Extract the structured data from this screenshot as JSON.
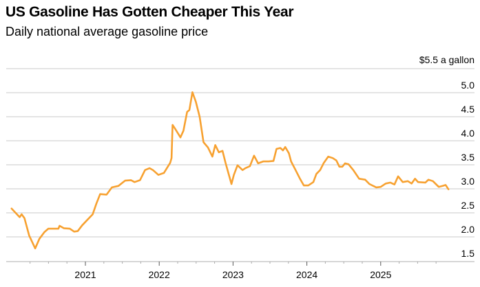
{
  "chart_data": {
    "type": "line",
    "title": "US Gasoline Has Gotten Cheaper This Year",
    "subtitle": "Daily national average gasoline price",
    "ylabel": "$5.5 a gallon",
    "ylim": [
      1.5,
      5.5
    ],
    "yticks": [
      "1.5",
      "2.0",
      "2.5",
      "3.0",
      "3.5",
      "4.0",
      "4.5",
      "5.0"
    ],
    "xticks": [
      "2021",
      "2022",
      "2023",
      "2024",
      "2025"
    ],
    "xlim": [
      "2020-01-01",
      "2026-01-01"
    ],
    "grid": true,
    "color": "#f7a130",
    "series": [
      {
        "points": [
          [
            "2020-01-01",
            2.59
          ],
          [
            "2020-02-10",
            2.41
          ],
          [
            "2020-02-20",
            2.47
          ],
          [
            "2020-03-05",
            2.39
          ],
          [
            "2020-03-28",
            2.03
          ],
          [
            "2020-04-27",
            1.76
          ],
          [
            "2020-05-18",
            1.96
          ],
          [
            "2020-06-12",
            2.1
          ],
          [
            "2020-07-01",
            2.17
          ],
          [
            "2020-08-20",
            2.17
          ],
          [
            "2020-08-26",
            2.23
          ],
          [
            "2020-09-16",
            2.18
          ],
          [
            "2020-10-16",
            2.17
          ],
          [
            "2020-11-06",
            2.11
          ],
          [
            "2020-11-24",
            2.12
          ],
          [
            "2020-12-16",
            2.24
          ],
          [
            "2021-01-12",
            2.36
          ],
          [
            "2021-02-06",
            2.47
          ],
          [
            "2021-02-24",
            2.69
          ],
          [
            "2021-03-15",
            2.89
          ],
          [
            "2021-04-16",
            2.88
          ],
          [
            "2021-05-12",
            3.03
          ],
          [
            "2021-06-13",
            3.06
          ],
          [
            "2021-07-16",
            3.17
          ],
          [
            "2021-08-14",
            3.18
          ],
          [
            "2021-09-01",
            3.14
          ],
          [
            "2021-09-28",
            3.18
          ],
          [
            "2021-10-23",
            3.39
          ],
          [
            "2021-11-14",
            3.43
          ],
          [
            "2021-12-01",
            3.39
          ],
          [
            "2021-12-28",
            3.29
          ],
          [
            "2022-01-24",
            3.33
          ],
          [
            "2022-02-24",
            3.54
          ],
          [
            "2022-03-03",
            3.64
          ],
          [
            "2022-03-08",
            4.33
          ],
          [
            "2022-03-22",
            4.24
          ],
          [
            "2022-04-16",
            4.07
          ],
          [
            "2022-05-01",
            4.21
          ],
          [
            "2022-05-19",
            4.6
          ],
          [
            "2022-05-30",
            4.64
          ],
          [
            "2022-06-14",
            5.01
          ],
          [
            "2022-07-01",
            4.81
          ],
          [
            "2022-07-20",
            4.5
          ],
          [
            "2022-08-08",
            3.97
          ],
          [
            "2022-08-30",
            3.86
          ],
          [
            "2022-09-21",
            3.67
          ],
          [
            "2022-10-05",
            3.91
          ],
          [
            "2022-10-23",
            3.76
          ],
          [
            "2022-11-10",
            3.79
          ],
          [
            "2022-11-25",
            3.54
          ],
          [
            "2022-12-24",
            3.1
          ],
          [
            "2023-01-05",
            3.29
          ],
          [
            "2023-01-23",
            3.49
          ],
          [
            "2023-02-17",
            3.39
          ],
          [
            "2023-03-03",
            3.43
          ],
          [
            "2023-03-25",
            3.47
          ],
          [
            "2023-04-15",
            3.69
          ],
          [
            "2023-05-05",
            3.53
          ],
          [
            "2023-05-30",
            3.57
          ],
          [
            "2023-06-25",
            3.57
          ],
          [
            "2023-07-20",
            3.58
          ],
          [
            "2023-08-04",
            3.83
          ],
          [
            "2023-08-23",
            3.85
          ],
          [
            "2023-09-05",
            3.8
          ],
          [
            "2023-09-16",
            3.87
          ],
          [
            "2023-10-04",
            3.74
          ],
          [
            "2023-10-15",
            3.57
          ],
          [
            "2023-11-06",
            3.39
          ],
          [
            "2023-11-28",
            3.21
          ],
          [
            "2023-12-17",
            3.07
          ],
          [
            "2024-01-08",
            3.07
          ],
          [
            "2024-02-02",
            3.14
          ],
          [
            "2024-02-17",
            3.31
          ],
          [
            "2024-03-07",
            3.39
          ],
          [
            "2024-03-25",
            3.54
          ],
          [
            "2024-04-16",
            3.67
          ],
          [
            "2024-05-08",
            3.64
          ],
          [
            "2024-05-26",
            3.59
          ],
          [
            "2024-06-10",
            3.46
          ],
          [
            "2024-06-25",
            3.46
          ],
          [
            "2024-07-08",
            3.53
          ],
          [
            "2024-07-26",
            3.51
          ],
          [
            "2024-08-18",
            3.39
          ],
          [
            "2024-09-16",
            3.21
          ],
          [
            "2024-10-16",
            3.19
          ],
          [
            "2024-11-06",
            3.1
          ],
          [
            "2024-12-10",
            3.03
          ],
          [
            "2025-01-01",
            3.04
          ],
          [
            "2025-01-26",
            3.11
          ],
          [
            "2025-02-18",
            3.13
          ],
          [
            "2025-03-10",
            3.09
          ],
          [
            "2025-03-28",
            3.26
          ],
          [
            "2025-04-20",
            3.14
          ],
          [
            "2025-05-15",
            3.16
          ],
          [
            "2025-06-03",
            3.11
          ],
          [
            "2025-06-20",
            3.21
          ],
          [
            "2025-07-05",
            3.14
          ],
          [
            "2025-08-10",
            3.13
          ],
          [
            "2025-08-25",
            3.19
          ],
          [
            "2025-09-16",
            3.16
          ],
          [
            "2025-10-15",
            3.04
          ],
          [
            "2025-11-03",
            3.06
          ],
          [
            "2025-11-18",
            3.08
          ],
          [
            "2025-12-02",
            2.99
          ]
        ]
      }
    ]
  }
}
